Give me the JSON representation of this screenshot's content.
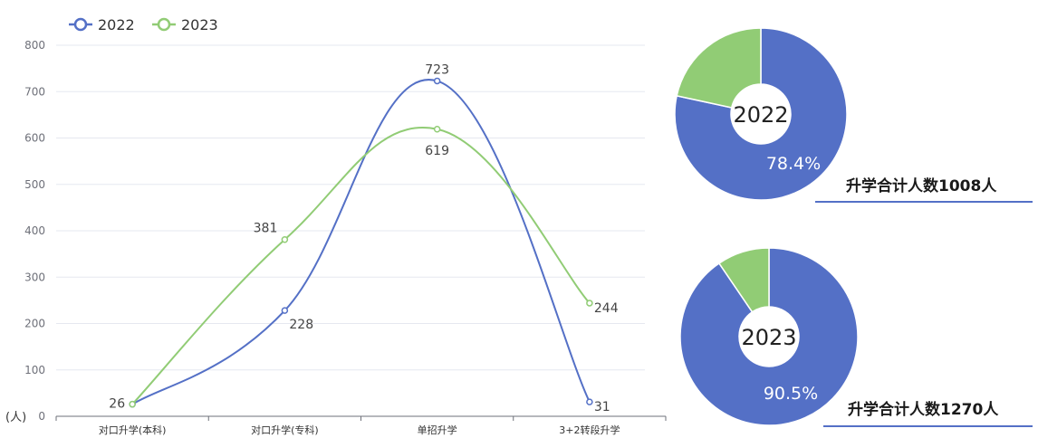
{
  "chart_data": [
    {
      "type": "line",
      "smooth": true,
      "categories": [
        "对口升学(本科)",
        "对口升学(专科)",
        "单招升学",
        "3+2转段升学"
      ],
      "series": [
        {
          "name": "2022",
          "color": "#5470c6",
          "values": [
            26,
            228,
            723,
            31
          ]
        },
        {
          "name": "2023",
          "color": "#91cc75",
          "values": [
            26,
            381,
            619,
            244
          ]
        }
      ],
      "ylabel": "(人)",
      "ylim": [
        0,
        800
      ],
      "yticks": [
        0,
        100,
        200,
        300,
        400,
        500,
        600,
        700,
        800
      ],
      "data_labels": [
        {
          "series": "2022",
          "index": 1,
          "text": "228"
        },
        {
          "series": "2022",
          "index": 2,
          "text": "723"
        },
        {
          "series": "2022",
          "index": 3,
          "text": "31"
        },
        {
          "series": "2023",
          "index": 0,
          "text": "26"
        },
        {
          "series": "2023",
          "index": 1,
          "text": "381"
        },
        {
          "series": "2023",
          "index": 2,
          "text": "619"
        },
        {
          "series": "2023",
          "index": 3,
          "text": "244"
        }
      ],
      "grid": true,
      "legend_position": "top-left"
    },
    {
      "type": "pie",
      "donut": true,
      "center_label": "2022",
      "slices": [
        {
          "value": 78.4,
          "label": "78.4%",
          "color": "#5470c6"
        },
        {
          "value": 21.6,
          "label": "",
          "color": "#91cc75"
        }
      ],
      "caption": "升学合计人数1008人"
    },
    {
      "type": "pie",
      "donut": true,
      "center_label": "2023",
      "slices": [
        {
          "value": 90.5,
          "label": "90.5%",
          "color": "#5470c6"
        },
        {
          "value": 9.5,
          "label": "",
          "color": "#91cc75"
        }
      ],
      "caption": "升学合计人数1270人"
    }
  ]
}
